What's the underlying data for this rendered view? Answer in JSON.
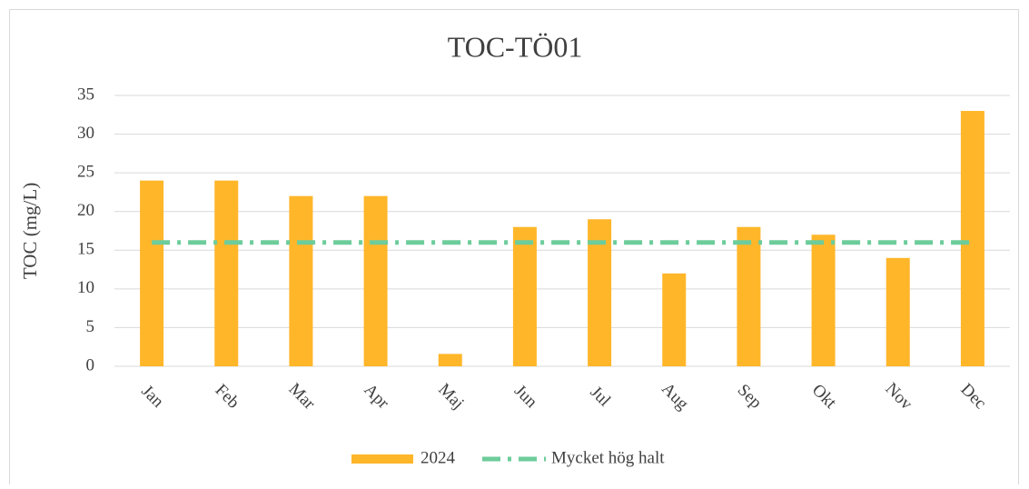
{
  "chart_data": {
    "type": "bar",
    "title": "TOC-TÖ01",
    "y_label": "TOC (mg/L)",
    "categories": [
      "Jan",
      "Feb",
      "Mar",
      "Apr",
      "Maj",
      "Jun",
      "Jul",
      "Aug",
      "Sep",
      "Okt",
      "Nov",
      "Dec"
    ],
    "series": [
      {
        "name": "2024",
        "type": "bar",
        "color": "#ffb629",
        "values": [
          24,
          24,
          22,
          22,
          1.6,
          18,
          19,
          12,
          18,
          17,
          14,
          33
        ]
      },
      {
        "name": "Mycket hög halt",
        "type": "line",
        "color": "#6dcc9b",
        "values": [
          16,
          16,
          16,
          16,
          16,
          16,
          16,
          16,
          16,
          16,
          16,
          16
        ]
      }
    ],
    "ylim": [
      0,
      35
    ],
    "yticks": [
      0,
      5,
      10,
      15,
      20,
      25,
      30,
      35
    ],
    "grid": true,
    "legend": "bottom"
  }
}
